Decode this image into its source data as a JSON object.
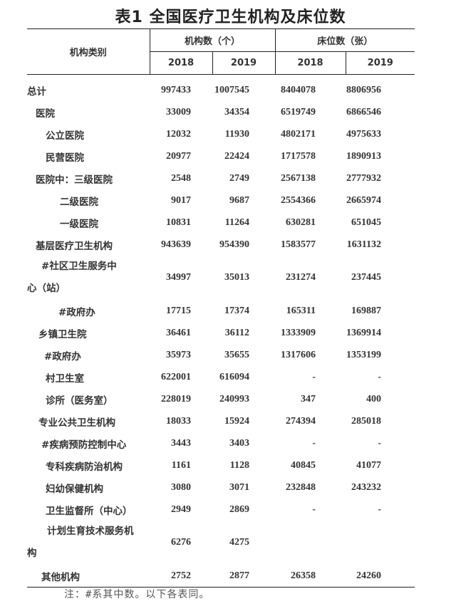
{
  "title": "表1  全国医疗卫生机构及床位数",
  "header": {
    "category": "机构类别",
    "institutions": "机构数（个）",
    "beds": "床位数（张）",
    "years": [
      "2018",
      "2019",
      "2018",
      "2019"
    ]
  },
  "rows": [
    {
      "label": "总计",
      "v": [
        "997433",
        "1007545",
        "8404078",
        "8806956"
      ]
    },
    {
      "label": "医院",
      "v": [
        "33009",
        "34354",
        "6519749",
        "6866546"
      ]
    },
    {
      "label": "公立医院",
      "v": [
        "12032",
        "11930",
        "4802171",
        "4975633"
      ]
    },
    {
      "label": "民营医院",
      "v": [
        "20977",
        "22424",
        "1717578",
        "1890913"
      ]
    },
    {
      "label": "医院中：三级医院",
      "v": [
        "2548",
        "2749",
        "2567138",
        "2777932"
      ]
    },
    {
      "label": "二级医院",
      "v": [
        "9017",
        "9687",
        "2554366",
        "2665974"
      ]
    },
    {
      "label": "一级医院",
      "v": [
        "10831",
        "11264",
        "630281",
        "651045"
      ]
    },
    {
      "label": "基层医疗卫生机构",
      "v": [
        "943639",
        "954390",
        "1583577",
        "1631132"
      ]
    },
    {
      "label": "#社区卫生服务中心（站）",
      "v": [
        "34997",
        "35013",
        "231274",
        "237445"
      ]
    },
    {
      "label": "#政府办",
      "v": [
        "17715",
        "17374",
        "165311",
        "169887"
      ]
    },
    {
      "label": "乡镇卫生院",
      "v": [
        "36461",
        "36112",
        "1333909",
        "1369914"
      ]
    },
    {
      "label": "#政府办",
      "v": [
        "35973",
        "35655",
        "1317606",
        "1353199"
      ]
    },
    {
      "label": "村卫生室",
      "v": [
        "622001",
        "616094",
        "-",
        "-"
      ]
    },
    {
      "label": "诊所（医务室）",
      "v": [
        "228019",
        "240993",
        "347",
        "400"
      ]
    },
    {
      "label": "专业公共卫生机构",
      "v": [
        "18033",
        "15924",
        "274394",
        "285018"
      ]
    },
    {
      "label": "#疾病预防控制中心",
      "v": [
        "3443",
        "3403",
        "-",
        "-"
      ]
    },
    {
      "label": "专科疾病防治机构",
      "v": [
        "1161",
        "1128",
        "40845",
        "41077"
      ]
    },
    {
      "label": "妇幼保健机构",
      "v": [
        "3080",
        "3071",
        "232848",
        "243232"
      ]
    },
    {
      "label": "卫生监督所（中心）",
      "v": [
        "2949",
        "2869",
        "-",
        "-"
      ]
    },
    {
      "label": "计划生育技术服务机构",
      "v": [
        "6276",
        "4275",
        "",
        ""
      ]
    },
    {
      "label": "其他机构",
      "v": [
        "2752",
        "2877",
        "26358",
        "24260"
      ]
    }
  ],
  "note": "注：#系其中数。以下各表同。"
}
